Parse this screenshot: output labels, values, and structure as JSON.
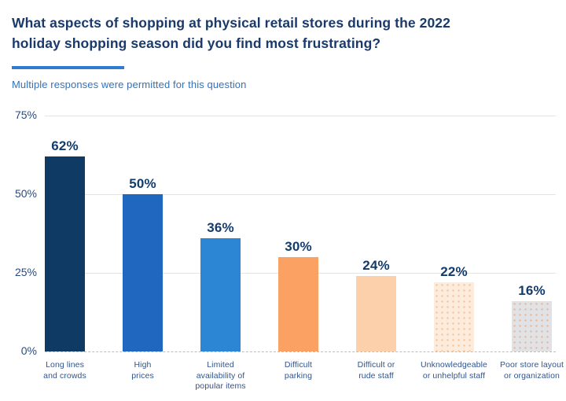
{
  "page": {
    "title": "What aspects of shopping at physical retail stores during the 2022\nholiday shopping season did you find most frustrating?",
    "subtitle": "Multiple responses were permitted for this question"
  },
  "colors": {
    "title_text": "#1A3A6B",
    "accent_rule": "#2E7CD6",
    "subtitle_text": "#3272BC",
    "axis_tick_text": "#2A4C7F",
    "value_label_text": "#133C6D",
    "category_label_text": "#31548C",
    "gridline": "#DCE4F2",
    "baseline": "#A9C2DB"
  },
  "chart_data": {
    "type": "bar",
    "title": "What aspects of shopping at physical retail stores during the 2022 holiday shopping season did you find most frustrating?",
    "subtitle": "Multiple responses were permitted for this question",
    "categories": [
      "Long lines\nand crowds",
      "High\nprices",
      "Limited\navailability of\npopular items",
      "Difficult\nparking",
      "Difficult or\nrude staff",
      "Unknowledgeable\nor unhelpful staff",
      "Poor store layout\nor organization"
    ],
    "values": [
      62,
      50,
      36,
      30,
      24,
      22,
      16
    ],
    "data_labels": [
      "62%",
      "50%",
      "36%",
      "30%",
      "24%",
      "22%",
      "16%"
    ],
    "bar_colors": [
      "#0E3A64",
      "#2068BF",
      "#2D86D3",
      "#FAA163",
      "#FCD0AB",
      "#FDEBDC",
      "#E0E2E6"
    ],
    "bar_dot_pattern_colors": [
      null,
      null,
      null,
      null,
      null,
      "#F3C49E",
      "#E8B695"
    ],
    "xlabel": "",
    "ylabel": "",
    "ylim": [
      0,
      75
    ],
    "y_ticks": [
      {
        "label": "75%",
        "value": 75
      },
      {
        "label": "50%",
        "value": 50
      },
      {
        "label": "25%",
        "value": 25
      },
      {
        "label": "0%",
        "value": 0
      }
    ],
    "grid": true,
    "legend": false
  }
}
